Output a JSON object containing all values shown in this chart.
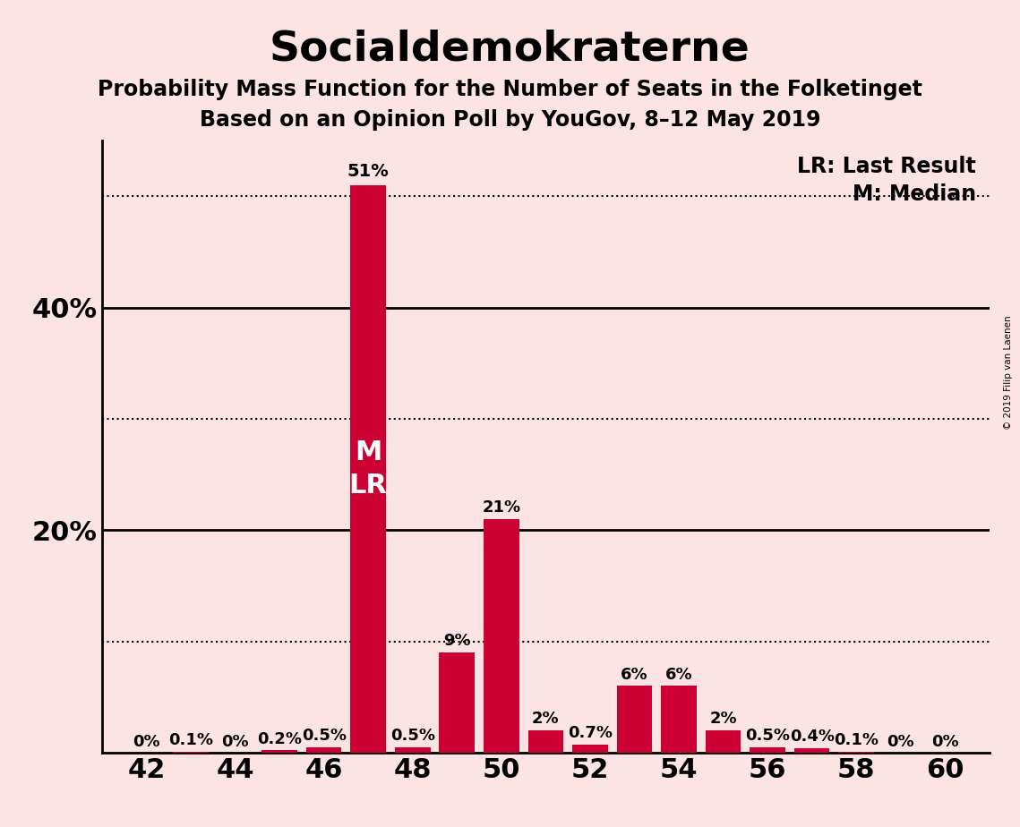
{
  "title": "Socialdemokraterne",
  "subtitle1": "Probability Mass Function for the Number of Seats in the Folketinget",
  "subtitle2": "Based on an Opinion Poll by YouGov, 8–12 May 2019",
  "copyright": "© 2019 Filip van Laenen",
  "background_color": "#fce4e4",
  "bar_color": "#cc0033",
  "seats": [
    42,
    43,
    44,
    45,
    46,
    47,
    48,
    49,
    50,
    51,
    52,
    53,
    54,
    55,
    56,
    57,
    58,
    59,
    60
  ],
  "probabilities": [
    0.0,
    0.1,
    0.0,
    0.2,
    0.5,
    51.0,
    0.5,
    9.0,
    21.0,
    2.0,
    0.7,
    6.0,
    6.0,
    2.0,
    0.5,
    0.4,
    0.1,
    0.0,
    0.0
  ],
  "labels": [
    "0%",
    "0.1%",
    "0%",
    "0.2%",
    "0.5%",
    "51%",
    "0.5%",
    "9%",
    "21%",
    "2%",
    "0.7%",
    "6%",
    "6%",
    "2%",
    "0.5%",
    "0.4%",
    "0.1%",
    "0%",
    "0%"
  ],
  "median_seat": 47,
  "last_result_seat": 47,
  "xlim": [
    41,
    61
  ],
  "ylim": [
    0,
    55
  ],
  "xticks": [
    42,
    44,
    46,
    48,
    50,
    52,
    54,
    56,
    58,
    60
  ],
  "ytick_labels_pos": [
    20,
    40
  ],
  "ytick_labels_text": [
    "20%",
    "40%"
  ],
  "hlines_dotted": [
    10,
    30,
    50
  ],
  "hlines_solid": [
    20,
    40
  ],
  "legend_lr": "LR: Last Result",
  "legend_m": "M: Median",
  "title_fontsize": 34,
  "subtitle_fontsize": 17,
  "axis_tick_fontsize": 22,
  "label_fontsize": 13,
  "bar_label_inside_fontsize": 22,
  "legend_fontsize": 17
}
